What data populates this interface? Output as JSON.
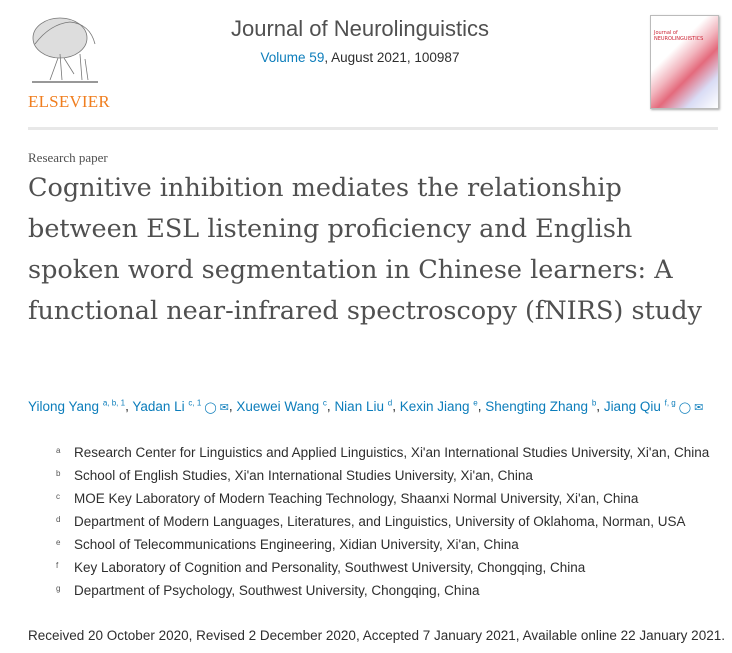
{
  "header": {
    "publisher_logo": "ELSEVIER",
    "journal_title": "Journal of Neurolinguistics",
    "volume_link": "Volume 59",
    "issue_info": ", August 2021, 100987",
    "cover_text": "Journal of NEUROLINGUISTICS"
  },
  "article": {
    "type": "Research paper",
    "title": "Cognitive inhibition mediates the relationship between ESL listening proficiency and English spoken word segmentation in Chinese learners: A functional near-infrared spectroscopy (fNIRS) study"
  },
  "authors": [
    {
      "name": "Yilong Yang",
      "sup": "a, b, 1",
      "icons": []
    },
    {
      "name": "Yadan Li",
      "sup": "c, 1",
      "icons": [
        "person-icon",
        "email-icon"
      ]
    },
    {
      "name": "Xuewei Wang",
      "sup": "c",
      "icons": []
    },
    {
      "name": "Nian Liu",
      "sup": "d",
      "icons": []
    },
    {
      "name": "Kexin Jiang",
      "sup": "e",
      "icons": []
    },
    {
      "name": "Shengting Zhang",
      "sup": "b",
      "icons": []
    },
    {
      "name": "Jiang Qiu",
      "sup": "f, g",
      "icons": [
        "person-icon",
        "email-icon"
      ]
    }
  ],
  "affiliations": [
    {
      "label": "a",
      "text": "Research Center for Linguistics and Applied Linguistics, Xi'an International Studies University, Xi'an, China"
    },
    {
      "label": "b",
      "text": "School of English Studies, Xi'an International Studies University, Xi'an, China"
    },
    {
      "label": "c",
      "text": "MOE Key Laboratory of Modern Teaching Technology, Shaanxi Normal University, Xi'an, China"
    },
    {
      "label": "d",
      "text": "Department of Modern Languages, Literatures, and Linguistics, University of Oklahoma, Norman, USA"
    },
    {
      "label": "e",
      "text": "School of Telecommunications Engineering, Xidian University, Xi'an, China"
    },
    {
      "label": "f",
      "text": "Key Laboratory of Cognition and Personality, Southwest University, Chongqing, China"
    },
    {
      "label": "g",
      "text": "Department of Psychology, Southwest University, Chongqing, China"
    }
  ],
  "dates": "Received 20 October 2020, Revised 2 December 2020, Accepted 7 January 2021, Available online 22 January 2021.",
  "colors": {
    "link": "#0c7dbb",
    "elsevier_orange": "#f07e1f",
    "title_gray": "#505050"
  }
}
